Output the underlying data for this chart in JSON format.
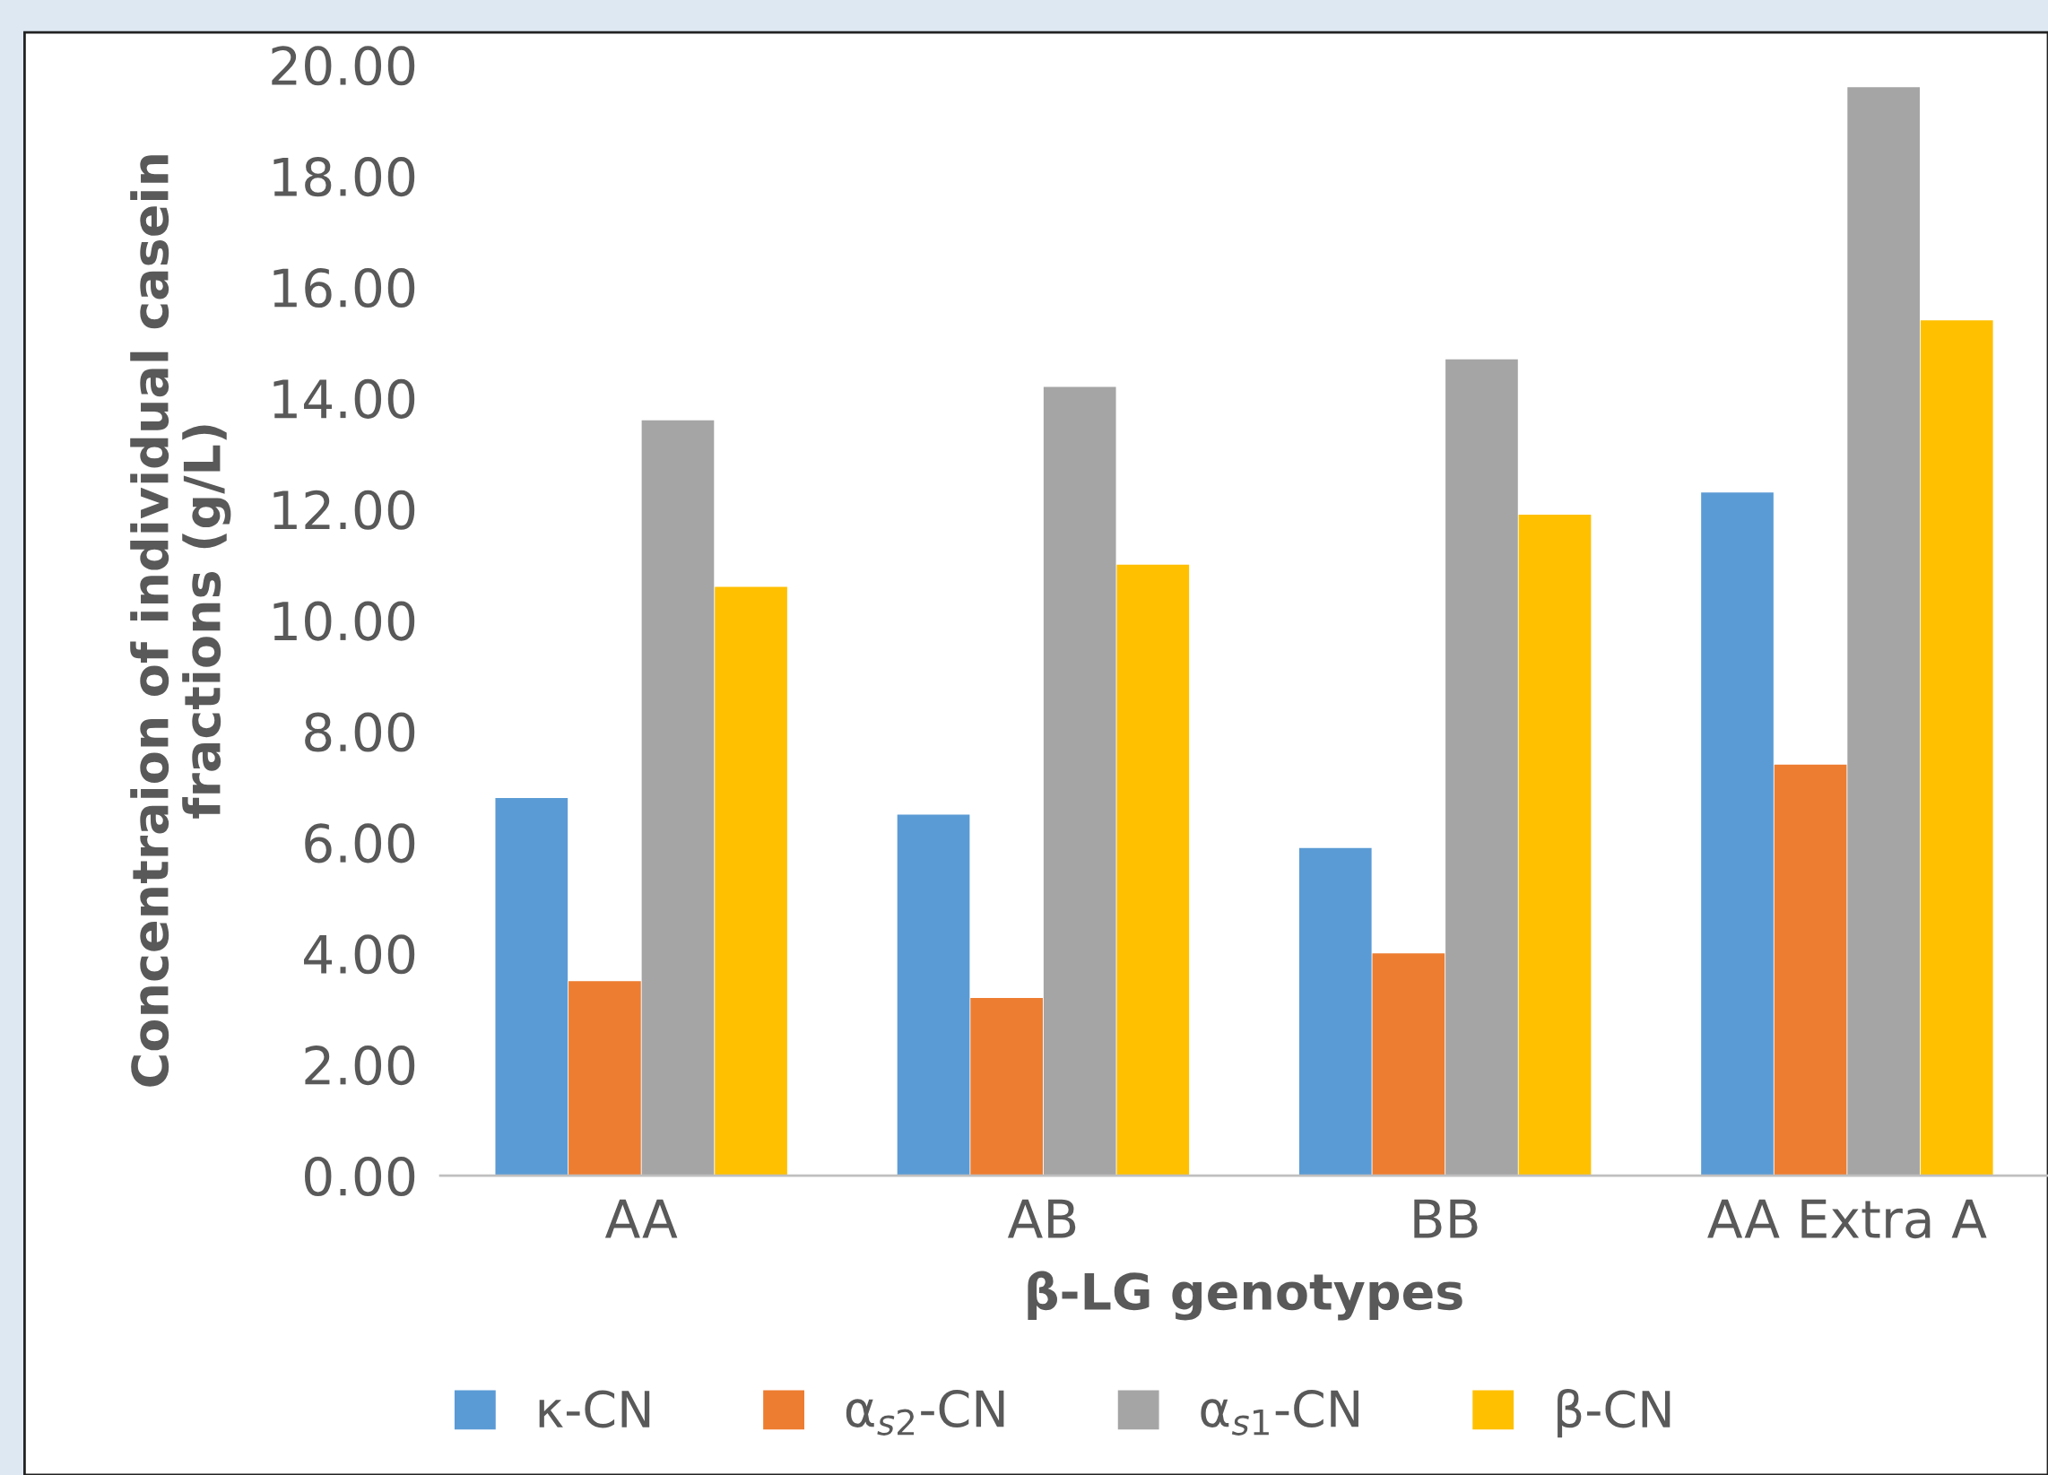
{
  "chart_data": {
    "type": "bar",
    "xlabel": "β-LG genotypes",
    "ylabel": "Concentraion of individual casein\nfractions (g/L)",
    "categories": [
      "AA",
      "AB",
      "BB",
      "AA Extra A"
    ],
    "series": [
      {
        "name": "κ-CN",
        "color": "#5b9bd5",
        "values": [
          6.8,
          6.5,
          5.9,
          12.3
        ]
      },
      {
        "name": "α$_{s2}$-CN",
        "color": "#ed7d31",
        "values": [
          3.5,
          3.2,
          4.0,
          7.4
        ]
      },
      {
        "name": "α$_{s1}$-CN",
        "color": "#a5a5a5",
        "values": [
          13.6,
          14.2,
          14.7,
          19.6
        ]
      },
      {
        "name": "β-CN",
        "color": "#ffc000",
        "values": [
          10.6,
          11.0,
          11.9,
          15.4
        ]
      }
    ],
    "ylim": [
      0,
      20
    ],
    "yticks": [
      {
        "value": 0,
        "label": "0.00"
      },
      {
        "value": 2,
        "label": "2.00"
      },
      {
        "value": 4,
        "label": "4.00"
      },
      {
        "value": 6,
        "label": "6.00"
      },
      {
        "value": 8,
        "label": "8.00"
      },
      {
        "value": 10,
        "label": "10.00"
      },
      {
        "value": 12,
        "label": "12.00"
      },
      {
        "value": 14,
        "label": "14.00"
      },
      {
        "value": 16,
        "label": "16.00"
      },
      {
        "value": 18,
        "label": "18.00"
      },
      {
        "value": 20,
        "label": "20.00"
      }
    ],
    "grid": false,
    "legend": "bottom"
  }
}
